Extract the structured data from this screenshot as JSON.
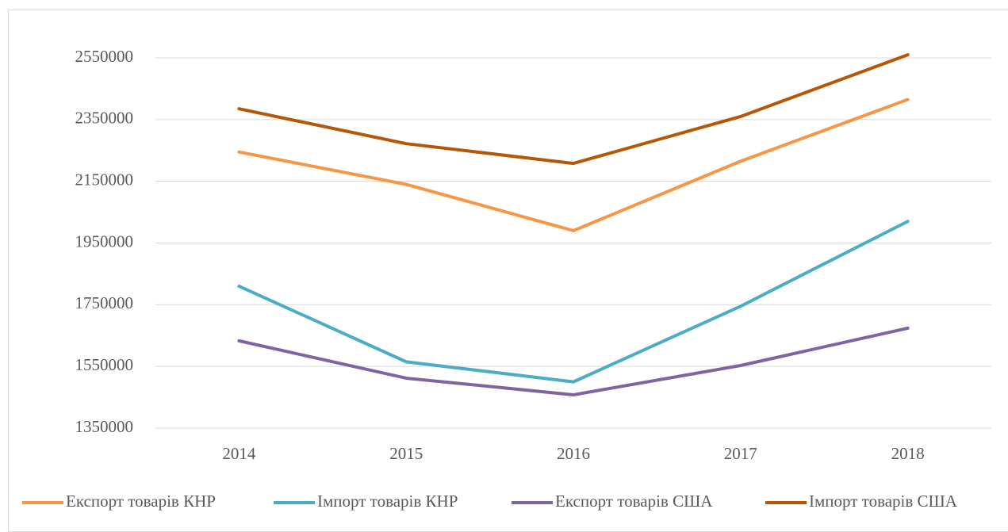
{
  "chart_data": {
    "type": "line",
    "categories": [
      "2014",
      "2015",
      "2016",
      "2017",
      "2018"
    ],
    "series": [
      {
        "name": "Експорт товарів КНР",
        "color": "#f79646",
        "values": [
          2245000,
          2140000,
          1990000,
          2215000,
          2415000
        ]
      },
      {
        "name": "Імпорт товарів КНР",
        "color": "#4bacc6",
        "values": [
          1810000,
          1565000,
          1500000,
          1745000,
          2020000
        ]
      },
      {
        "name": "Експорт товарів США",
        "color": "#8064a2",
        "values": [
          1633000,
          1512000,
          1458000,
          1553000,
          1674000
        ]
      },
      {
        "name": "Імпорт товарів США",
        "color": "#b65708",
        "values": [
          2385000,
          2272000,
          2208000,
          2360000,
          2560000
        ]
      }
    ],
    "ylim": [
      1350000,
      2600000
    ],
    "yticks": [
      1350000,
      1550000,
      1750000,
      1950000,
      2150000,
      2350000,
      2550000
    ],
    "grid": true,
    "legend": "bottom"
  }
}
